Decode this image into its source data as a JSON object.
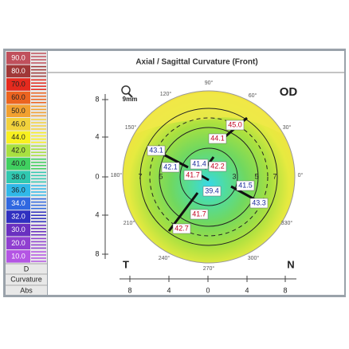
{
  "header": {
    "title": "Axial / Sagittal Curvature (Front)",
    "eye": "OD",
    "zoom": "9mm"
  },
  "scale": {
    "entries": [
      {
        "label": "90.0",
        "color": "#c0505c"
      },
      {
        "label": "80.0",
        "color": "#a03838"
      },
      {
        "label": "70.0",
        "color": "#e52a1e"
      },
      {
        "label": "60.0",
        "color": "#ec6420"
      },
      {
        "label": "50.0",
        "color": "#f2a030"
      },
      {
        "label": "46.0",
        "color": "#f2d23c"
      },
      {
        "label": "44.0",
        "color": "#f8f020"
      },
      {
        "label": "42.0",
        "color": "#a8e040"
      },
      {
        "label": "40.0",
        "color": "#40d060"
      },
      {
        "label": "38.0",
        "color": "#30c8b0"
      },
      {
        "label": "36.0",
        "color": "#30b8e8"
      },
      {
        "label": "34.0",
        "color": "#3068e0"
      },
      {
        "label": "32.0",
        "color": "#3030c0"
      },
      {
        "label": "30.0",
        "color": "#6a30c0"
      },
      {
        "label": "20.0",
        "color": "#9040d0"
      },
      {
        "label": "10.0",
        "color": "#b455e4"
      }
    ],
    "unit": "D",
    "kind": "Curvature",
    "mode": "Abs"
  },
  "map": {
    "temporal": "T",
    "nasal": "N",
    "readings": [
      {
        "text": "45.0",
        "color": "#c00020"
      },
      {
        "text": "44.1",
        "color": "#c00020"
      },
      {
        "text": "43.1",
        "color": "#1a2a9a"
      },
      {
        "text": "42.1",
        "color": "#1a2a9a"
      },
      {
        "text": "41.4",
        "color": "#1a2a9a"
      },
      {
        "text": "42.2",
        "color": "#c00020"
      },
      {
        "text": "41.7",
        "color": "#c00020"
      },
      {
        "text": "41.5",
        "color": "#1a2a9a"
      },
      {
        "text": "39.4",
        "color": "#1a2a9a"
      },
      {
        "text": "43.3",
        "color": "#1a2a9a"
      },
      {
        "text": "41.7",
        "color": "#c00020"
      },
      {
        "text": "42.7",
        "color": "#c00020"
      }
    ],
    "ring_labels": [
      "7",
      "5",
      "3",
      "5",
      "7"
    ],
    "angles": [
      "90°",
      "120°",
      "60°",
      "150°",
      "30°",
      "180°",
      "0°",
      "210°",
      "330°",
      "240°",
      "300°",
      "270°"
    ],
    "y_ticks": [
      "8",
      "4",
      "0",
      "4",
      "8"
    ],
    "x_ticks": [
      "8",
      "4",
      "0",
      "4",
      "8"
    ]
  }
}
